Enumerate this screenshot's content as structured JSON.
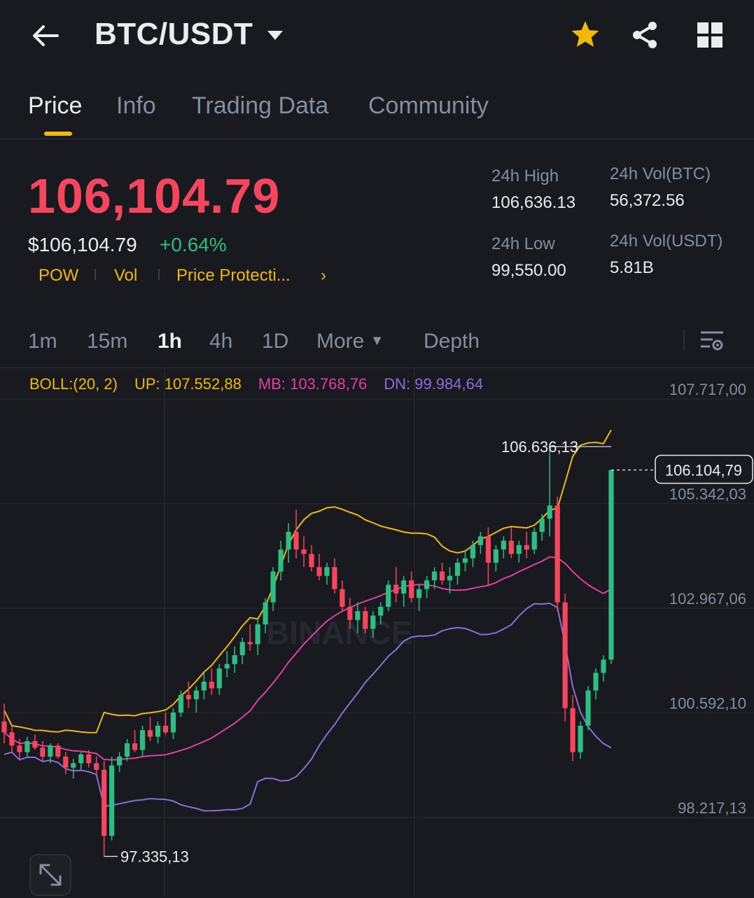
{
  "header": {
    "pair": "BTC/USDT",
    "icons": [
      "back-arrow-icon",
      "chevron-down-icon",
      "star-icon",
      "share-icon",
      "grid-icon"
    ],
    "star_color": "#F0B90B"
  },
  "tabs": [
    {
      "label": "Price",
      "active": true
    },
    {
      "label": "Info",
      "active": false
    },
    {
      "label": "Trading Data",
      "active": false
    },
    {
      "label": "Community",
      "active": false
    }
  ],
  "price": {
    "last": "106,104.79",
    "usd": "$106,104.79",
    "change": "+0.64%",
    "tags": [
      "POW",
      "Vol",
      "Price Protecti..."
    ],
    "down_color": "#F6465D",
    "up_color": "#2EBD85",
    "accent": "#F0B90B"
  },
  "stats": {
    "high_label": "24h High",
    "high_value": "106,636.13",
    "low_label": "24h Low",
    "low_value": "99,550.00",
    "vol_btc_label": "24h Vol(BTC)",
    "vol_btc_value": "56,372.56",
    "vol_usdt_label": "24h Vol(USDT)",
    "vol_usdt_value": "5.81B"
  },
  "timeframes": [
    {
      "label": "1m",
      "active": false
    },
    {
      "label": "15m",
      "active": false
    },
    {
      "label": "1h",
      "active": true
    },
    {
      "label": "4h",
      "active": false
    },
    {
      "label": "1D",
      "active": false
    },
    {
      "label": "More",
      "active": false
    },
    {
      "label": "Depth",
      "active": false
    }
  ],
  "boll": {
    "label": "BOLL:(20, 2)",
    "up": "UP: 107.552,88",
    "mb": "MB: 103.768,76",
    "dn": "DN: 99.984,64",
    "up_color": "#F0B90B",
    "mb_color": "#E040A0",
    "dn_color": "#8A6FD9"
  },
  "chart_data": {
    "type": "candlestick",
    "y_ticks": [
      "107.717,00",
      "105.342,03",
      "102.967,06",
      "100.592,10",
      "98.217,13"
    ],
    "y_tick_values": [
      107717.0,
      105342.03,
      102967.06,
      100592.1,
      98217.13
    ],
    "high_marker": "106.636,13",
    "low_marker": "97.335,13",
    "current_price_label": "106.104,79",
    "watermark": "BINANCE",
    "candles": [
      [
        100400,
        100800,
        99900,
        100150
      ],
      [
        100150,
        100300,
        99700,
        99850
      ],
      [
        99850,
        100000,
        99550,
        99700
      ],
      [
        99700,
        100050,
        99600,
        99950
      ],
      [
        99950,
        100100,
        99750,
        99800
      ],
      [
        99800,
        99950,
        99500,
        99600
      ],
      [
        99600,
        99900,
        99450,
        99850
      ],
      [
        99850,
        99900,
        99550,
        99600
      ],
      [
        99600,
        99700,
        99200,
        99350
      ],
      [
        99350,
        99550,
        99100,
        99450
      ],
      [
        99450,
        99700,
        99300,
        99650
      ],
      [
        99650,
        99750,
        99350,
        99450
      ],
      [
        99450,
        99600,
        99200,
        99300
      ],
      [
        99300,
        99500,
        97335,
        97800
      ],
      [
        97800,
        99600,
        97700,
        99400
      ],
      [
        99400,
        99700,
        99250,
        99600
      ],
      [
        99600,
        100000,
        99500,
        99900
      ],
      [
        99900,
        100200,
        99700,
        99750
      ],
      [
        99750,
        100300,
        99600,
        100200
      ],
      [
        100200,
        100500,
        99950,
        100050
      ],
      [
        100050,
        100400,
        99900,
        100300
      ],
      [
        100300,
        100600,
        100100,
        100150
      ],
      [
        100150,
        100700,
        100000,
        100600
      ],
      [
        100600,
        101100,
        100500,
        101000
      ],
      [
        101000,
        101300,
        100700,
        100900
      ],
      [
        100900,
        101200,
        100600,
        101100
      ],
      [
        101100,
        101500,
        100900,
        101300
      ],
      [
        101300,
        101600,
        101000,
        101150
      ],
      [
        101150,
        101700,
        101000,
        101600
      ],
      [
        101600,
        102000,
        101400,
        101700
      ],
      [
        101700,
        102100,
        101500,
        101900
      ],
      [
        101900,
        102300,
        101700,
        102200
      ],
      [
        102200,
        102600,
        102000,
        102150
      ],
      [
        102150,
        102700,
        101900,
        102600
      ],
      [
        102600,
        103200,
        102400,
        103100
      ],
      [
        103100,
        103900,
        102900,
        103800
      ],
      [
        103800,
        104500,
        103600,
        104300
      ],
      [
        104300,
        104900,
        104000,
        104700
      ],
      [
        104700,
        105200,
        104100,
        104300
      ],
      [
        104300,
        104600,
        103900,
        104200
      ],
      [
        104200,
        104400,
        103800,
        103900
      ],
      [
        103900,
        104200,
        103600,
        103700
      ],
      [
        103700,
        104000,
        103500,
        103900
      ],
      [
        103900,
        104100,
        103300,
        103400
      ],
      [
        103400,
        103600,
        102900,
        103000
      ],
      [
        103000,
        103200,
        102500,
        102700
      ],
      [
        102700,
        103100,
        102400,
        102900
      ],
      [
        102900,
        103000,
        102400,
        102500
      ],
      [
        102500,
        102900,
        102300,
        102800
      ],
      [
        102800,
        103100,
        102600,
        103000
      ],
      [
        103000,
        103600,
        102900,
        103500
      ],
      [
        103500,
        103900,
        103100,
        103300
      ],
      [
        103300,
        103700,
        103000,
        103600
      ],
      [
        103600,
        103800,
        103100,
        103200
      ],
      [
        103200,
        103500,
        102900,
        103400
      ],
      [
        103400,
        103700,
        103200,
        103600
      ],
      [
        103600,
        103900,
        103400,
        103800
      ],
      [
        103800,
        104000,
        103500,
        103600
      ],
      [
        103600,
        103900,
        103300,
        103700
      ],
      [
        103700,
        104100,
        103500,
        104000
      ],
      [
        104000,
        104300,
        103800,
        104100
      ],
      [
        104100,
        104500,
        103900,
        104400
      ],
      [
        104400,
        104700,
        104200,
        104600
      ],
      [
        104600,
        104800,
        103500,
        104000
      ],
      [
        104000,
        104400,
        103800,
        104300
      ],
      [
        104300,
        104600,
        104100,
        104500
      ],
      [
        104500,
        104800,
        104100,
        104200
      ],
      [
        104200,
        104500,
        104000,
        104400
      ],
      [
        104400,
        104700,
        104100,
        104300
      ],
      [
        104300,
        104800,
        104200,
        104700
      ],
      [
        104700,
        105100,
        104500,
        105000
      ],
      [
        105000,
        106636,
        104600,
        105300
      ],
      [
        105300,
        105500,
        102900,
        103100
      ],
      [
        103100,
        103300,
        100400,
        100700
      ],
      [
        100700,
        101000,
        99500,
        99700
      ],
      [
        99700,
        100400,
        99550,
        100300
      ],
      [
        100300,
        101200,
        100200,
        101100
      ],
      [
        101100,
        101600,
        100900,
        101500
      ],
      [
        101500,
        101900,
        101300,
        101800
      ],
      [
        101800,
        106105,
        101700,
        106105
      ]
    ]
  }
}
